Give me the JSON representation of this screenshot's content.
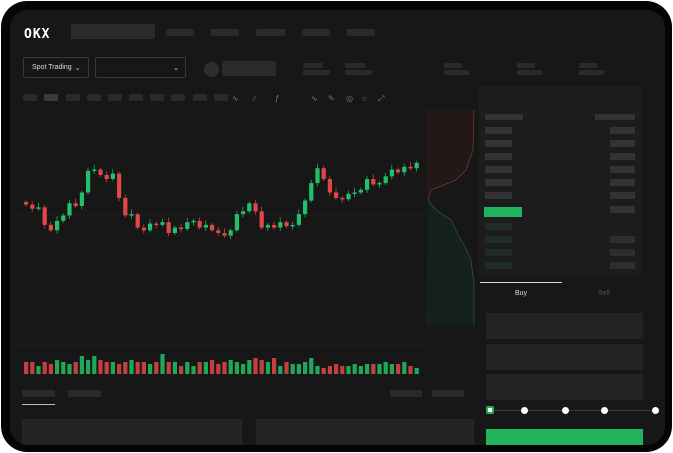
{
  "brand": {
    "logo": "OKX"
  },
  "toolbar": {
    "market_type": "Spot Trading",
    "pair_select": ""
  },
  "trade": {
    "buy_label": "Buy",
    "sell_label": "Sell",
    "leverage_steps": 5,
    "selected_step": 0
  },
  "colors": {
    "up": "#22c06a",
    "down": "#e04848",
    "background": "#171717",
    "accent": "#21b35c"
  },
  "icons": [
    "chevron-down-icon",
    "line-tool-icon",
    "pen-icon",
    "magnet-icon",
    "circle-icon",
    "expand-icon",
    "orderbook-both-icon",
    "orderbook-bids-icon",
    "orderbook-asks-icon"
  ],
  "chart_data": {
    "type": "candlestick",
    "closes": [
      41,
      38,
      39,
      26,
      22,
      29,
      33,
      42,
      40,
      50,
      66,
      67,
      63,
      60,
      64,
      46,
      33,
      34,
      24,
      22,
      27,
      26,
      28,
      20,
      24,
      23,
      28,
      29,
      24,
      26,
      22,
      20,
      18,
      22,
      34,
      36,
      42,
      36,
      24,
      26,
      24,
      28,
      25,
      26,
      34,
      44,
      57,
      68,
      60,
      50,
      46,
      45,
      49,
      50,
      52,
      60,
      56,
      57,
      62,
      67,
      65,
      69,
      68,
      72
    ],
    "volumes": [
      6,
      6,
      4,
      6,
      5,
      7,
      6,
      5,
      6,
      9,
      7,
      9,
      7,
      6,
      6,
      5,
      6,
      7,
      6,
      6,
      5,
      6,
      10,
      6,
      6,
      4,
      6,
      4,
      6,
      6,
      7,
      5,
      6,
      7,
      6,
      5,
      7,
      8,
      7,
      6,
      8,
      4,
      6,
      5,
      5,
      6,
      8,
      4,
      3,
      4,
      5,
      4,
      4,
      5,
      4,
      5,
      5,
      5,
      6,
      5,
      5,
      6,
      4,
      3
    ]
  }
}
